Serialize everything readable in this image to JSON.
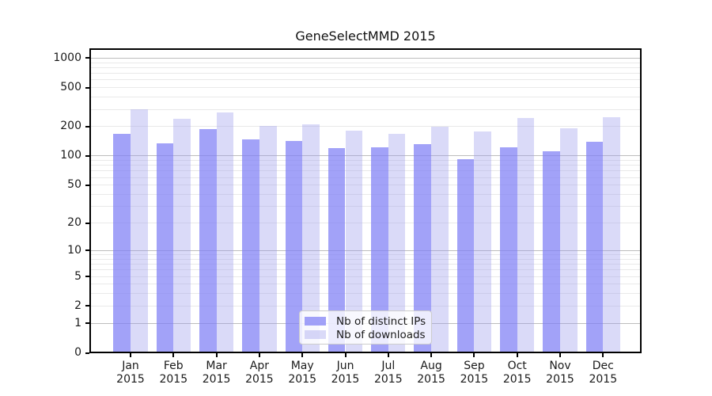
{
  "title": "GeneSelectMMD 2015",
  "chart_data": {
    "type": "bar",
    "title": "GeneSelectMMD 2015",
    "categories": [
      "Jan",
      "Feb",
      "Mar",
      "Apr",
      "May",
      "Jun",
      "Jul",
      "Aug",
      "Sep",
      "Oct",
      "Nov",
      "Dec"
    ],
    "year_label": "2015",
    "series": [
      {
        "name": "Nb of distinct IPs",
        "color": "rgba(126,126,245,0.72)",
        "values": [
          170,
          134,
          188,
          148,
          143,
          120,
          122,
          133,
          92,
          123,
          112,
          139
        ]
      },
      {
        "name": "Nb of downloads",
        "color": "rgba(152,152,235,0.36)",
        "values": [
          300,
          241,
          280,
          203,
          212,
          181,
          170,
          201,
          178,
          244,
          193,
          249
        ]
      }
    ],
    "yticks": [
      0,
      1,
      2,
      5,
      10,
      20,
      50,
      100,
      200,
      500,
      1000
    ],
    "ylim": [
      0,
      1260
    ],
    "yscale": "log10(value+1)",
    "grid": true,
    "legend_position": "lower center inside plot",
    "xlabel": "",
    "ylabel": ""
  },
  "colors": {
    "spine": "#000000",
    "major_gridline": "#bdbdbd",
    "minor_gridline": "#e9e9e9",
    "text": "#1a1a1a",
    "legend_border": "#cccccc",
    "legend_background": "rgba(255,255,255,0.8)"
  }
}
